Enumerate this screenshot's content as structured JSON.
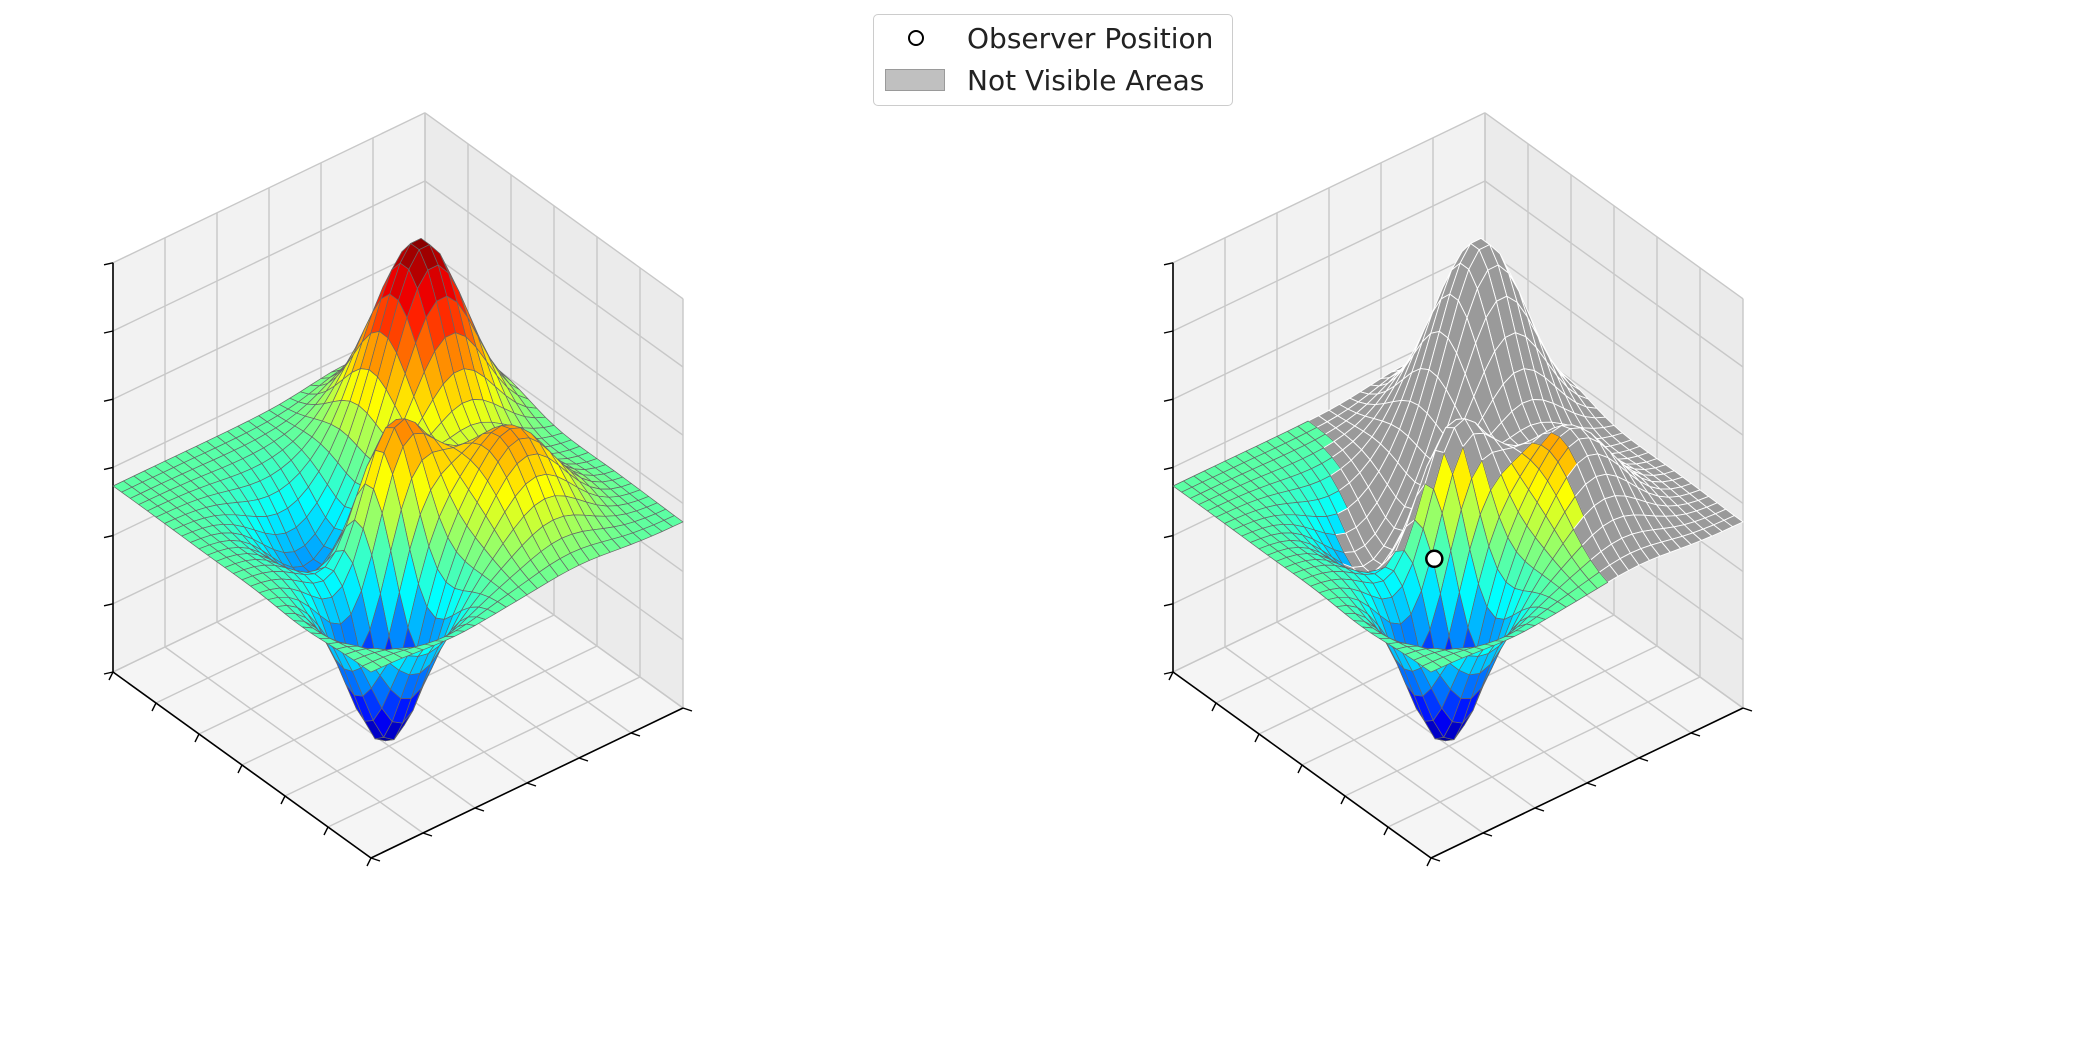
{
  "chart_data": [
    {
      "type": "surface3d",
      "panel": "left",
      "title": "",
      "xlabel": "",
      "ylabel": "",
      "zlabel": "",
      "tick_labels_shown": false,
      "grid": true,
      "colormap": "jet",
      "wireframe_color": "#555555",
      "surface": {
        "function": "sum of gaussians",
        "x_range": [
          -3,
          3
        ],
        "y_range": [
          -3,
          3
        ],
        "grid_cells": 30,
        "baseline_z": 0.0,
        "components": [
          {
            "x": -1.3,
            "y": 1.5,
            "amplitude": 3.0,
            "sigma": 0.7
          },
          {
            "x": 0.3,
            "y": -0.4,
            "amplitude": 2.0,
            "sigma": 0.55
          },
          {
            "x": 1.4,
            "y": 1.0,
            "amplitude": 1.5,
            "sigma": 0.7
          },
          {
            "x": 1.4,
            "y": -1.4,
            "amplitude": -2.6,
            "sigma": 0.6
          },
          {
            "x": -0.7,
            "y": -0.9,
            "amplitude": -1.3,
            "sigma": 0.7
          }
        ]
      },
      "zlim": [
        -3,
        3.6
      ]
    },
    {
      "type": "surface3d",
      "panel": "right",
      "title": "",
      "xlabel": "",
      "ylabel": "",
      "zlabel": "",
      "tick_labels_shown": false,
      "grid": true,
      "colormap": "jet",
      "surface": "same as left panel",
      "observer": {
        "x": 0.9,
        "y": -1.2,
        "z": 0.0,
        "label": "Observer Position"
      },
      "hidden_area_color": "#9a9a9a",
      "hidden_area_label": "Not Visible Areas",
      "zlim": [
        -3,
        3.6
      ]
    }
  ],
  "legend": {
    "placement": "upper center",
    "entries": [
      {
        "label": "Observer Position",
        "marker": "circle"
      },
      {
        "label": "Not Visible Areas",
        "patch_color": "#c0c0c0"
      }
    ]
  }
}
